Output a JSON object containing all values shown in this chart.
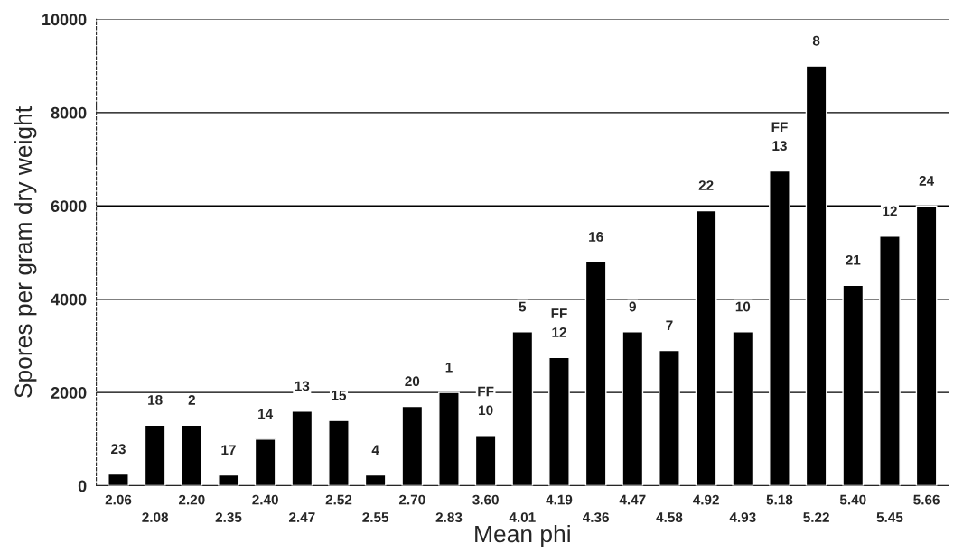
{
  "chart_data": {
    "type": "bar",
    "xlabel": "Mean phi",
    "ylabel": "Spores per gram dry weight",
    "categories": [
      "2.06",
      "2.08",
      "2.20",
      "2.35",
      "2.40",
      "2.47",
      "2.52",
      "2.55",
      "2.70",
      "2.83",
      "3.60",
      "4.01",
      "4.19",
      "4.36",
      "4.47",
      "4.58",
      "4.92",
      "4.93",
      "5.18",
      "5.22",
      "5.40",
      "5.45",
      "5.66"
    ],
    "values": [
      250,
      1300,
      1300,
      230,
      1000,
      1600,
      1400,
      230,
      1700,
      2000,
      1080,
      3300,
      2750,
      4800,
      3300,
      2900,
      5900,
      3300,
      6750,
      9000,
      4300,
      5350,
      6000
    ],
    "color": "#000000",
    "ylim": [
      0,
      10000
    ],
    "yticks": [
      0,
      2000,
      4000,
      6000,
      8000,
      10000
    ],
    "grid": "y",
    "annotations": [
      {
        "text": "23",
        "x": "2.06",
        "y": 250
      },
      {
        "text": "18",
        "x": "2.08",
        "y": 1300
      },
      {
        "text": "2",
        "x": "2.20",
        "y": 1300
      },
      {
        "text": "17",
        "x": "2.35",
        "y": 230
      },
      {
        "text": "14",
        "x": "2.40",
        "y": 1000
      },
      {
        "text": "13",
        "x": "2.47",
        "y": 1600
      },
      {
        "text": "15",
        "x": "2.52",
        "y": 1400
      },
      {
        "text": "4",
        "x": "2.55",
        "y": 230
      },
      {
        "text": "20",
        "x": "2.70",
        "y": 1700
      },
      {
        "text": "1",
        "x": "2.83",
        "y": 2000
      },
      {
        "text": "FF\n10",
        "x": "3.60",
        "y": 1080
      },
      {
        "text": "5",
        "x": "4.01",
        "y": 3300
      },
      {
        "text": "FF\n12",
        "x": "4.19",
        "y": 2750
      },
      {
        "text": "16",
        "x": "4.36",
        "y": 4800
      },
      {
        "text": "9",
        "x": "4.47",
        "y": 3300
      },
      {
        "text": "7",
        "x": "4.58",
        "y": 2900
      },
      {
        "text": "22",
        "x": "4.92",
        "y": 5900
      },
      {
        "text": "10",
        "x": "4.93",
        "y": 3300
      },
      {
        "text": "FF\n13",
        "x": "5.18",
        "y": 6750
      },
      {
        "text": "8",
        "x": "5.22",
        "y": 9000
      },
      {
        "text": "21",
        "x": "5.40",
        "y": 4300
      },
      {
        "text": "12",
        "x": "5.45",
        "y": 5350
      },
      {
        "text": "24",
        "x": "5.66",
        "y": 6000
      }
    ]
  }
}
